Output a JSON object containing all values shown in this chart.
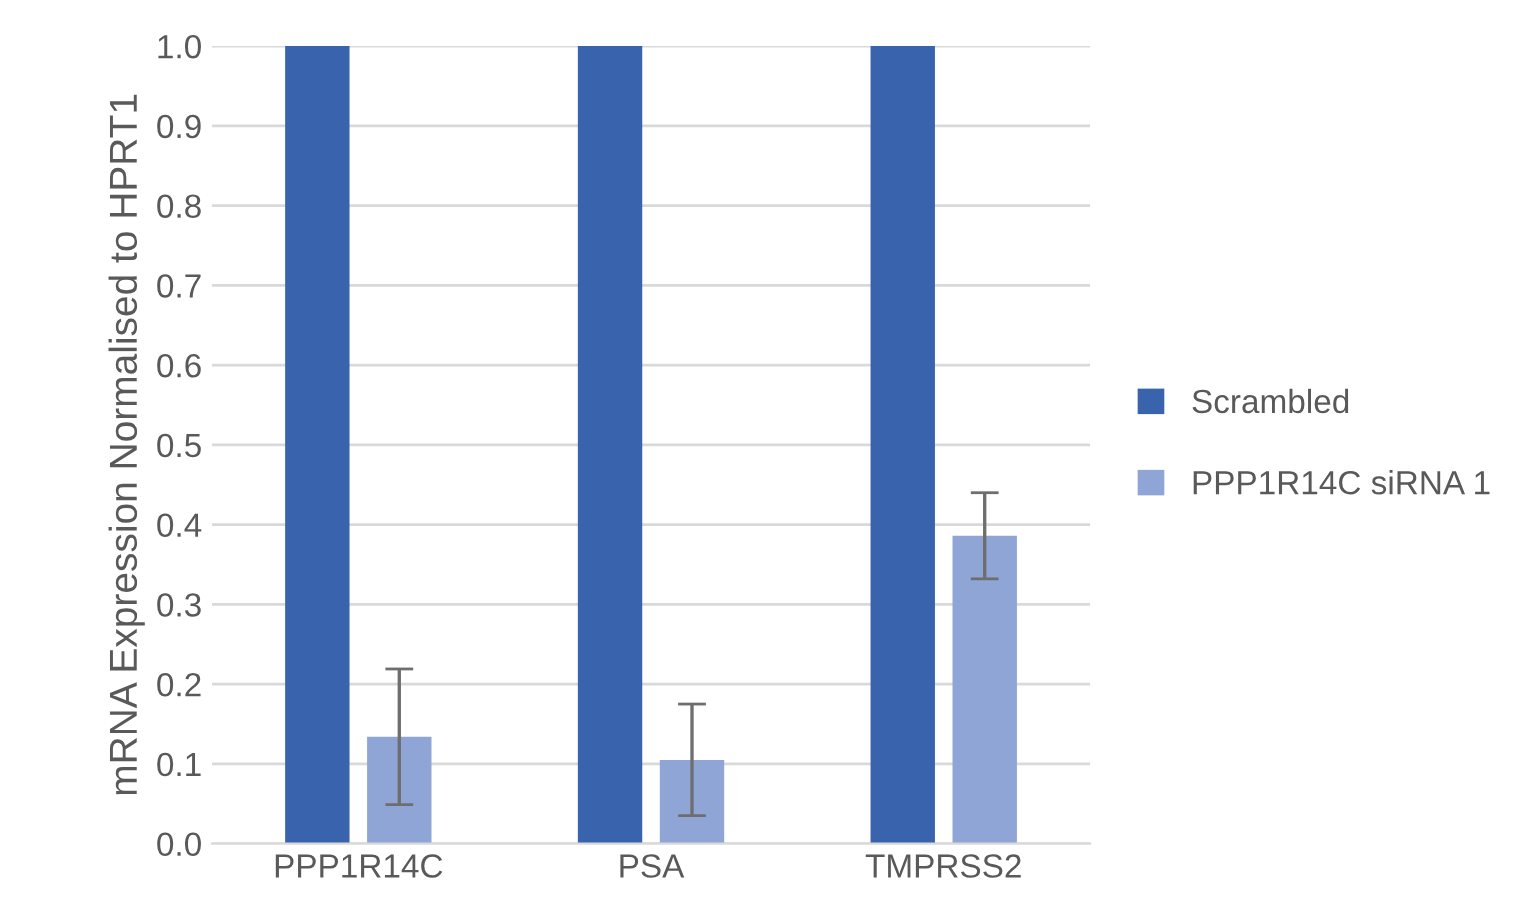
{
  "chart_data": {
    "type": "bar",
    "ylabel": "mRNA Expression Normalised to HPRT1",
    "categories": [
      "PPP1R14C",
      "PSA",
      "TMPRSS2"
    ],
    "series": [
      {
        "name": "Scrambled",
        "color": "#3a63ad",
        "values": [
          1.0,
          1.0,
          1.0
        ]
      },
      {
        "name": "PPP1R14C siRNA 1",
        "color": "#8fa5d6",
        "values": [
          0.134,
          0.105,
          0.386
        ],
        "errors": [
          0.085,
          0.07,
          0.054
        ]
      }
    ],
    "ylim": [
      0,
      1.0
    ],
    "yticks": [
      {
        "value": 0,
        "label": "0.0"
      },
      0.1,
      0.2,
      0.3,
      0.4,
      0.5,
      0.6,
      0.7,
      0.8,
      0.9,
      {
        "value": 1,
        "label": "1.0"
      }
    ],
    "grid": "y",
    "legend": "right"
  }
}
